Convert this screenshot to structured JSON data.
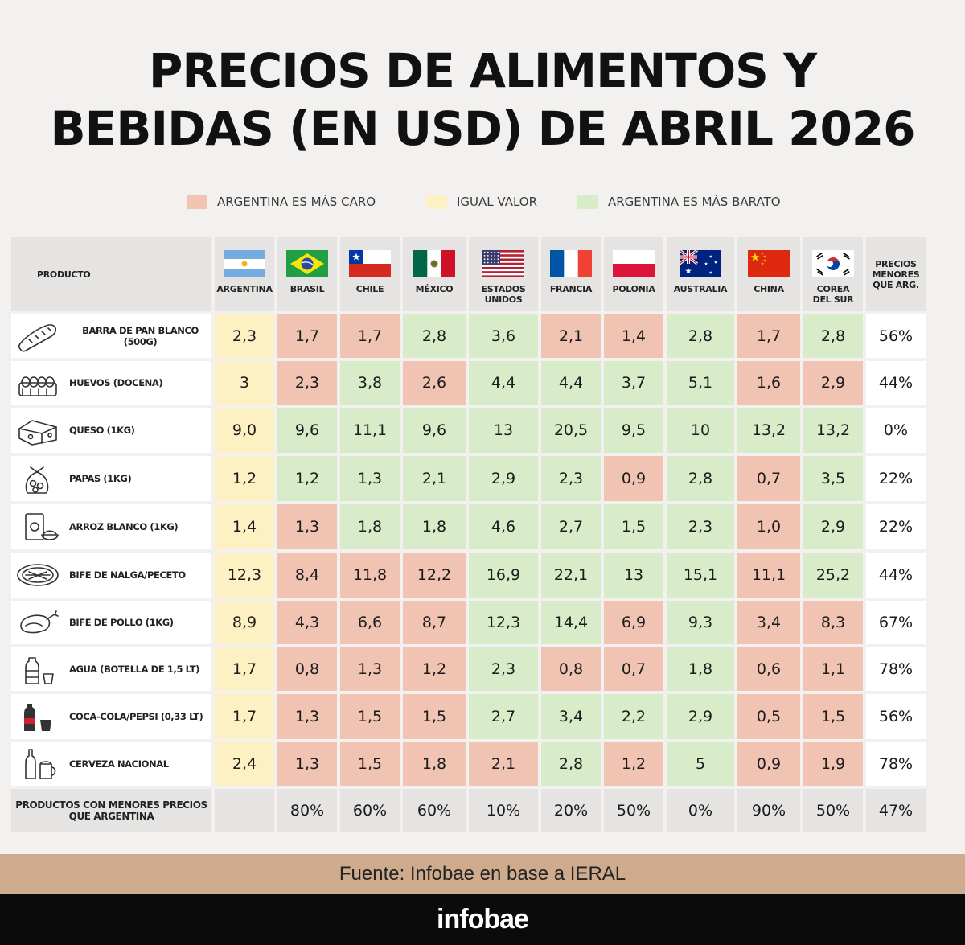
{
  "title": {
    "line1": "PRECIOS DE ALIMENTOS Y",
    "line2": "BEBIDAS (EN USD) DE ABRIL 2026"
  },
  "legend": [
    {
      "label": "ARGENTINA ES MÁS CARO",
      "color": "#f1c3b3"
    },
    {
      "label": "IGUAL VALOR",
      "color": "#fdf0c2"
    },
    {
      "label": "ARGENTINA ES MÁS BARATO",
      "color": "#d8ecc9"
    }
  ],
  "chart_data": {
    "type": "table",
    "product_header": "PRODUCTO",
    "last_header": [
      "PRECIOS",
      "MENORES",
      "QUE ARG."
    ],
    "countries": [
      {
        "name": [
          "ARGENTINA"
        ],
        "flag": "argentina-flag"
      },
      {
        "name": [
          "BRASIL"
        ],
        "flag": "brazil-flag"
      },
      {
        "name": [
          "CHILE"
        ],
        "flag": "chile-flag"
      },
      {
        "name": [
          "MÉXICO"
        ],
        "flag": "mexico-flag"
      },
      {
        "name": [
          "ESTADOS",
          "UNIDOS"
        ],
        "flag": "usa-flag"
      },
      {
        "name": [
          "FRANCIA"
        ],
        "flag": "france-flag"
      },
      {
        "name": [
          "POLONIA"
        ],
        "flag": "poland-flag"
      },
      {
        "name": [
          "AUSTRALIA"
        ],
        "flag": "australia-flag"
      },
      {
        "name": [
          "CHINA"
        ],
        "flag": "china-flag"
      },
      {
        "name": [
          "COREA",
          "DEL SUR"
        ],
        "flag": "korea-flag"
      }
    ],
    "rows": [
      {
        "product": "BARRA DE PAN BLANCO (500G)",
        "icon": "bread-icon",
        "values": [
          "2,3",
          "1,7",
          "1,7",
          "2,8",
          "3,6",
          "2,1",
          "1,4",
          "2,8",
          "1,7",
          "2,8"
        ],
        "status": [
          "igual",
          "caro",
          "caro",
          "barato",
          "barato",
          "caro",
          "caro",
          "barato",
          "caro",
          "barato"
        ],
        "pct": "56%"
      },
      {
        "product": "HUEVOS (DOCENA)",
        "icon": "eggs-icon",
        "values": [
          "3",
          "2,3",
          "3,8",
          "2,6",
          "4,4",
          "4,4",
          "3,7",
          "5,1",
          "1,6",
          "2,9"
        ],
        "status": [
          "igual",
          "caro",
          "barato",
          "caro",
          "barato",
          "barato",
          "barato",
          "barato",
          "caro",
          "caro"
        ],
        "pct": "44%"
      },
      {
        "product": "QUESO (1KG)",
        "icon": "cheese-icon",
        "values": [
          "9,0",
          "9,6",
          "11,1",
          "9,6",
          "13",
          "20,5",
          "9,5",
          "10",
          "13,2",
          "13,2"
        ],
        "status": [
          "igual",
          "barato",
          "barato",
          "barato",
          "barato",
          "barato",
          "barato",
          "barato",
          "barato",
          "barato"
        ],
        "pct": "0%"
      },
      {
        "product": "PAPAS (1KG)",
        "icon": "potatoes-icon",
        "values": [
          "1,2",
          "1,2",
          "1,3",
          "2,1",
          "2,9",
          "2,3",
          "0,9",
          "2,8",
          "0,7",
          "3,5"
        ],
        "status": [
          "igual",
          "barato",
          "barato",
          "barato",
          "barato",
          "barato",
          "caro",
          "barato",
          "caro",
          "barato"
        ],
        "pct": "22%"
      },
      {
        "product": "ARROZ BLANCO (1KG)",
        "icon": "rice-icon",
        "values": [
          "1,4",
          "1,3",
          "1,8",
          "1,8",
          "4,6",
          "2,7",
          "1,5",
          "2,3",
          "1,0",
          "2,9"
        ],
        "status": [
          "igual",
          "caro",
          "barato",
          "barato",
          "barato",
          "barato",
          "barato",
          "barato",
          "caro",
          "barato"
        ],
        "pct": "22%"
      },
      {
        "product": "BIFE DE NALGA/PECETO",
        "icon": "meat-icon",
        "values": [
          "12,3",
          "8,4",
          "11,8",
          "12,2",
          "16,9",
          "22,1",
          "13",
          "15,1",
          "11,1",
          "25,2"
        ],
        "status": [
          "igual",
          "caro",
          "caro",
          "caro",
          "barato",
          "barato",
          "barato",
          "barato",
          "caro",
          "barato"
        ],
        "pct": "44%"
      },
      {
        "product": "BIFE DE POLLO (1KG)",
        "icon": "chicken-icon",
        "values": [
          "8,9",
          "4,3",
          "6,6",
          "8,7",
          "12,3",
          "14,4",
          "6,9",
          "9,3",
          "3,4",
          "8,3"
        ],
        "status": [
          "igual",
          "caro",
          "caro",
          "caro",
          "barato",
          "barato",
          "caro",
          "barato",
          "caro",
          "caro"
        ],
        "pct": "67%"
      },
      {
        "product": "AGUA (BOTELLA DE 1,5 LT)",
        "icon": "water-bottle-icon",
        "values": [
          "1,7",
          "0,8",
          "1,3",
          "1,2",
          "2,3",
          "0,8",
          "0,7",
          "1,8",
          "0,6",
          "1,1"
        ],
        "status": [
          "igual",
          "caro",
          "caro",
          "caro",
          "barato",
          "caro",
          "caro",
          "barato",
          "caro",
          "caro"
        ],
        "pct": "78%"
      },
      {
        "product": "COCA-COLA/PEPSI (0,33 LT)",
        "icon": "soda-icon",
        "values": [
          "1,7",
          "1,3",
          "1,5",
          "1,5",
          "2,7",
          "3,4",
          "2,2",
          "2,9",
          "0,5",
          "1,5"
        ],
        "status": [
          "igual",
          "caro",
          "caro",
          "caro",
          "barato",
          "barato",
          "barato",
          "barato",
          "caro",
          "caro"
        ],
        "pct": "56%"
      },
      {
        "product": "CERVEZA NACIONAL",
        "icon": "beer-icon",
        "values": [
          "2,4",
          "1,3",
          "1,5",
          "1,8",
          "2,1",
          "2,8",
          "1,2",
          "5",
          "0,9",
          "1,9"
        ],
        "status": [
          "igual",
          "caro",
          "caro",
          "caro",
          "caro",
          "barato",
          "caro",
          "barato",
          "caro",
          "caro"
        ],
        "pct": "78%"
      }
    ],
    "footer": {
      "label": [
        "PRODUCTOS CON MENORES PRECIOS",
        "QUE ARGENTINA"
      ],
      "values": [
        "",
        "80%",
        "60%",
        "60%",
        "10%",
        "20%",
        "50%",
        "0%",
        "90%",
        "50%"
      ],
      "pct": "47%"
    }
  },
  "source": "Fuente: Infobae en base a IERAL",
  "brand": "infobae"
}
